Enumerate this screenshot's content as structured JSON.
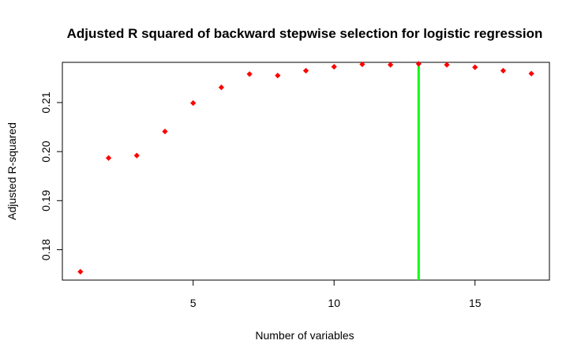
{
  "chart_data": {
    "type": "scatter",
    "title": "Adjusted R squared of backward stepwise selection for logistic regression",
    "xlabel": "Number of variables",
    "ylabel": "Adjusted R-squared",
    "x": [
      1,
      2,
      3,
      4,
      5,
      6,
      7,
      8,
      9,
      10,
      11,
      12,
      13,
      14,
      15,
      16,
      17
    ],
    "y": [
      0.1755,
      0.1987,
      0.1992,
      0.2041,
      0.2099,
      0.2131,
      0.2158,
      0.2155,
      0.2165,
      0.2173,
      0.2178,
      0.2177,
      0.2179,
      0.2177,
      0.2172,
      0.2165,
      0.2159
    ],
    "xlim": [
      0.36,
      17.64
    ],
    "ylim": [
      0.1738,
      0.2182
    ],
    "xticks": [
      5,
      10,
      15
    ],
    "xtick_labels": [
      "5",
      "10",
      "15"
    ],
    "yticks": [
      0.18,
      0.19,
      0.2,
      0.21
    ],
    "ytick_labels": [
      "0.18",
      "0.19",
      "0.20",
      "0.21"
    ],
    "point_color": "#ff0000",
    "reference_line": {
      "orientation": "vertical",
      "x": 13,
      "color": "#00ff00"
    },
    "grid": false,
    "legend": "none"
  }
}
